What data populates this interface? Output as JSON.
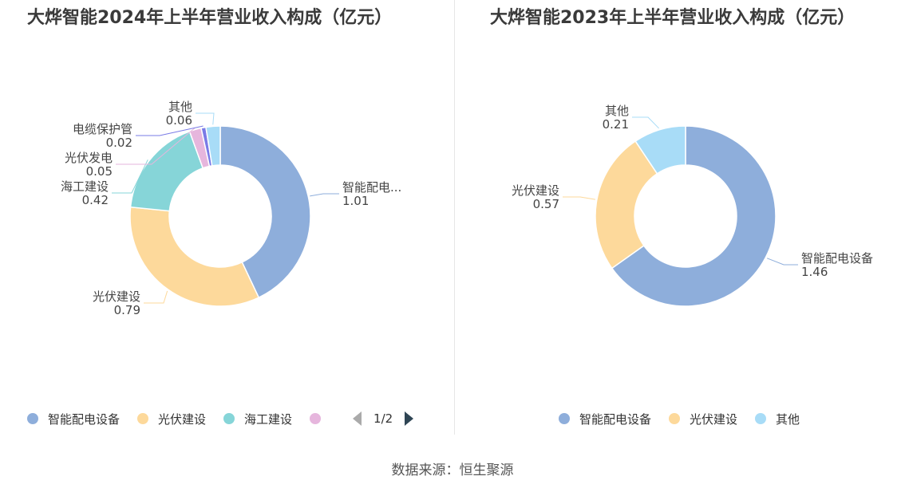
{
  "colors": {
    "智能配电设备": "#8eaedb",
    "光伏建设": "#fdd99b",
    "海工建设": "#86d5d8",
    "光伏发电": "#e6b6dd",
    "电缆保护管": "#7a7be6",
    "其他": "#a8dcf7"
  },
  "chart_data": [
    {
      "type": "pie",
      "title": "大烨智能2024年上半年营业收入构成（亿元）",
      "donut": true,
      "slices": [
        {
          "name": "智能配电设备",
          "label": "智能配电...",
          "value": 1.01,
          "value_text": "1.01"
        },
        {
          "name": "光伏建设",
          "label": "光伏建设",
          "value": 0.79,
          "value_text": "0.79"
        },
        {
          "name": "海工建设",
          "label": "海工建设",
          "value": 0.42,
          "value_text": "0.42"
        },
        {
          "name": "光伏发电",
          "label": "光伏发电",
          "value": 0.05,
          "value_text": "0.05"
        },
        {
          "name": "电缆保护管",
          "label": "电缆保护管",
          "value": 0.02,
          "value_text": "0.02"
        },
        {
          "name": "其他",
          "label": "其他",
          "value": 0.06,
          "value_text": "0.06"
        }
      ],
      "legend": {
        "position": "bottom",
        "visible_items": [
          "智能配电设备",
          "光伏建设",
          "海工建设",
          "光伏发电"
        ],
        "page": "1/2"
      }
    },
    {
      "type": "pie",
      "title": "大烨智能2023年上半年营业收入构成（亿元）",
      "donut": true,
      "slices": [
        {
          "name": "智能配电设备",
          "label": "智能配电设备",
          "value": 1.46,
          "value_text": "1.46"
        },
        {
          "name": "光伏建设",
          "label": "光伏建设",
          "value": 0.57,
          "value_text": "0.57"
        },
        {
          "name": "其他",
          "label": "其他",
          "value": 0.21,
          "value_text": "0.21"
        }
      ],
      "legend": {
        "position": "bottom",
        "visible_items": [
          "智能配电设备",
          "光伏建设",
          "其他"
        ]
      }
    }
  ],
  "legend_left": [
    {
      "name": "智能配电设备",
      "text": "智能配电设备"
    },
    {
      "name": "光伏建设",
      "text": "光伏建设"
    },
    {
      "name": "海工建设",
      "text": "海工建设"
    },
    {
      "name": "光伏发电",
      "text": ""
    }
  ],
  "legend_right": [
    {
      "name": "智能配电设备",
      "text": "智能配电设备"
    },
    {
      "name": "光伏建设",
      "text": "光伏建设"
    },
    {
      "name": "其他",
      "text": "其他"
    }
  ],
  "pager_text": "1/2",
  "source": "数据来源：恒生聚源"
}
